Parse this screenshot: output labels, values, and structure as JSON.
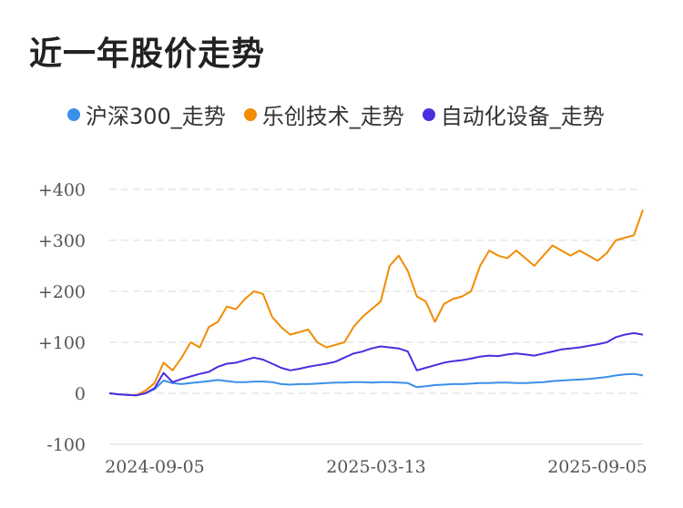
{
  "title": "近一年股价走势",
  "chart_data": {
    "type": "line",
    "title": "近一年股价走势",
    "xlabel": "",
    "ylabel": "",
    "x_ticks": [
      "2024-09-05",
      "2025-03-13",
      "2025-09-05"
    ],
    "y_ticks": [
      "+400",
      "+300",
      "+200",
      "+100",
      "0",
      "-100"
    ],
    "y_tick_values": [
      400,
      300,
      200,
      100,
      0,
      -100
    ],
    "ylim": [
      -100,
      400
    ],
    "grid": true,
    "legend_position": "top",
    "series": [
      {
        "name": "沪深300_走势",
        "color": "#3b8fe8",
        "values": [
          0,
          -2,
          -3,
          -4,
          0,
          8,
          25,
          20,
          18,
          20,
          22,
          24,
          26,
          24,
          22,
          22,
          23,
          23,
          22,
          18,
          17,
          18,
          18,
          19,
          20,
          21,
          21,
          22,
          22,
          21,
          22,
          22,
          21,
          20,
          12,
          14,
          16,
          17,
          18,
          18,
          19,
          20,
          20,
          21,
          21,
          20,
          20,
          21,
          22,
          24,
          25,
          26,
          27,
          28,
          30,
          32,
          35,
          37,
          38,
          35
        ]
      },
      {
        "name": "乐创技术_走势",
        "color": "#f08c00",
        "values": [
          0,
          -2,
          -3,
          -4,
          5,
          20,
          60,
          45,
          70,
          100,
          90,
          130,
          140,
          170,
          165,
          185,
          200,
          195,
          150,
          130,
          115,
          120,
          125,
          100,
          90,
          95,
          100,
          130,
          150,
          165,
          180,
          250,
          270,
          240,
          190,
          180,
          140,
          175,
          185,
          190,
          200,
          250,
          280,
          270,
          265,
          280,
          265,
          250,
          270,
          290,
          280,
          270,
          280,
          270,
          260,
          275,
          300,
          305,
          310,
          360
        ]
      },
      {
        "name": "自动化设备_走势",
        "color": "#4a2ee0",
        "values": [
          0,
          -2,
          -3,
          -4,
          0,
          10,
          40,
          22,
          28,
          33,
          38,
          42,
          52,
          58,
          60,
          65,
          70,
          66,
          58,
          50,
          45,
          48,
          52,
          55,
          58,
          62,
          70,
          78,
          82,
          88,
          92,
          90,
          88,
          82,
          45,
          50,
          55,
          60,
          63,
          65,
          68,
          72,
          74,
          73,
          76,
          78,
          76,
          74,
          78,
          82,
          86,
          88,
          90,
          93,
          96,
          100,
          110,
          115,
          118,
          115
        ]
      }
    ]
  }
}
